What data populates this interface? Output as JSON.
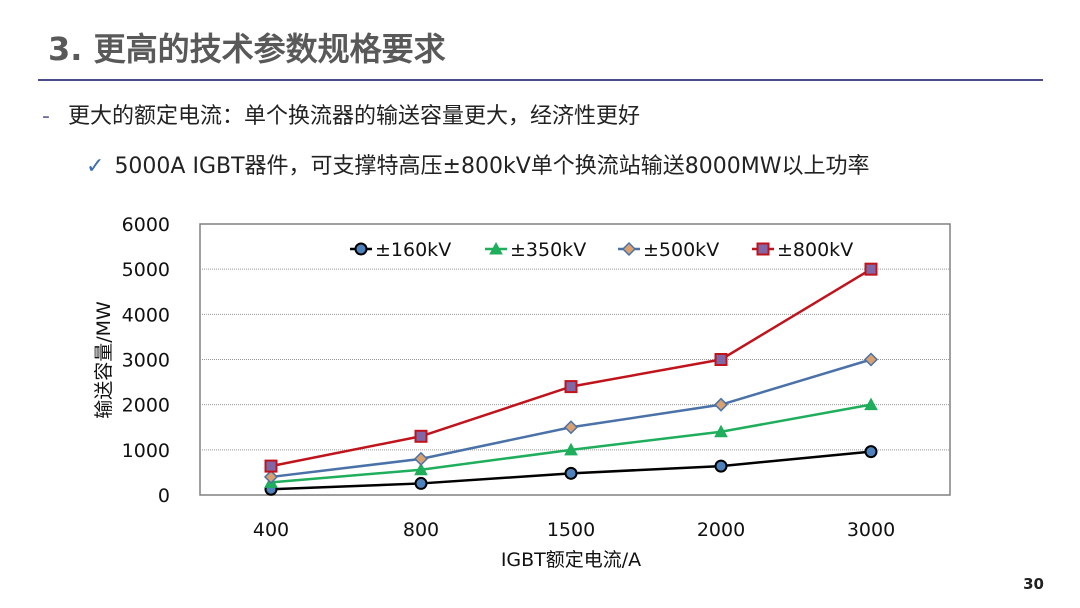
{
  "slide": {
    "title": "3. 更高的技术参数规格要求",
    "bullet1_marker": "-",
    "bullet1": "更大的额定电流：单个换流器的输送容量更大，经济性更好",
    "bullet2_marker": "✓",
    "bullet2": "5000A IGBT器件，可支撑特高压±800kV单个换流站输送8000MW以上功率",
    "page_number": "30"
  },
  "chart_data": {
    "type": "line",
    "xlabel": "IGBT额定电流/A",
    "ylabel": "输送容量/MW",
    "categories": [
      "400",
      "800",
      "1500",
      "2000",
      "3000"
    ],
    "ylim": [
      0,
      6000
    ],
    "yticks": [
      "0",
      "1000",
      "2000",
      "3000",
      "4000",
      "5000",
      "6000"
    ],
    "grid": true,
    "legend_placement": "top",
    "series": [
      {
        "name": "±160kV",
        "values": [
          128,
          256,
          480,
          640,
          960
        ],
        "color": "#000000",
        "marker": "circle",
        "marker_fill": "#4f81bd"
      },
      {
        "name": "±350kV",
        "values": [
          280,
          560,
          1000,
          1400,
          2000
        ],
        "color": "#1fae5b",
        "marker": "triangle",
        "marker_fill": "#1fae5b"
      },
      {
        "name": "±500kV",
        "values": [
          400,
          800,
          1500,
          2000,
          3000
        ],
        "color": "#4a72a8",
        "marker": "diamond",
        "marker_fill": "#d9a070"
      },
      {
        "name": "±800kV",
        "values": [
          640,
          1300,
          2400,
          3000,
          5000
        ],
        "color": "#c0141c",
        "marker": "square",
        "marker_fill": "#8068a8"
      }
    ]
  }
}
